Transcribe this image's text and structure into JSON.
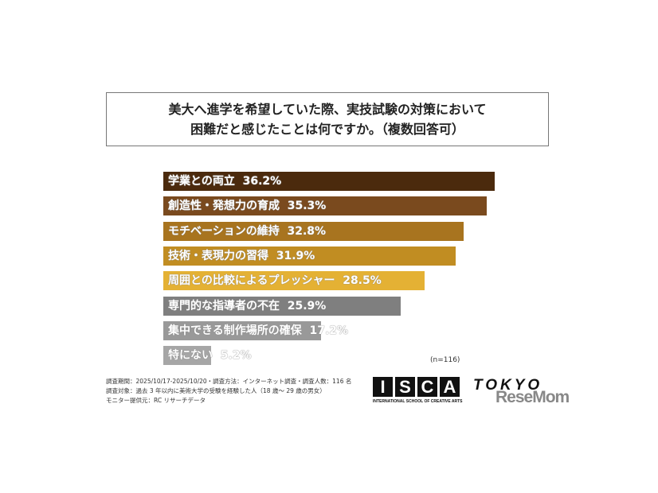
{
  "chart_data": {
    "type": "bar",
    "orientation": "horizontal",
    "title": [
      "美大へ進学を希望していた際、実技試験の対策において",
      "困難だと感じたことは何ですか。（複数回答可）"
    ],
    "categories": [
      "学業との両立",
      "創造性・発想力の育成",
      "モチベーションの維持",
      "技術・表現力の習得",
      "周囲との比較によるプレッシャー",
      "専門的な指導者の不在",
      "集中できる制作場所の確保",
      "特にない"
    ],
    "values": [
      36.2,
      35.3,
      32.8,
      31.9,
      28.5,
      25.9,
      17.2,
      5.2
    ],
    "value_labels": [
      "36.2%",
      "35.3%",
      "32.8%",
      "31.9%",
      "28.5%",
      "25.9%",
      "17.2%",
      "5.2%"
    ],
    "colors": [
      "#4b2a0d",
      "#7a4a1e",
      "#a8741f",
      "#c18d22",
      "#e4b134",
      "#7f7f7f",
      "#999999",
      "#a6a6a6"
    ],
    "sample_size": "(n=116)",
    "grid": false
  },
  "notes": [
    "調査期間：2025/10/17-2025/10/20・調査方法：インターネット調査・調査人数：116 名",
    "調査対象：過去 3 年以内に美術大学の受験を経験した人（18 歳～ 29 歳の男女）",
    "モニター提供元：RC リサーチデータ"
  ],
  "logo": {
    "letters": [
      "I",
      "S",
      "C",
      "A"
    ],
    "subtitle": "INTERNATIONAL SCHOOL OF CREATIVE ARTS",
    "city": "TOKYO",
    "watermark": "ReseMom"
  }
}
